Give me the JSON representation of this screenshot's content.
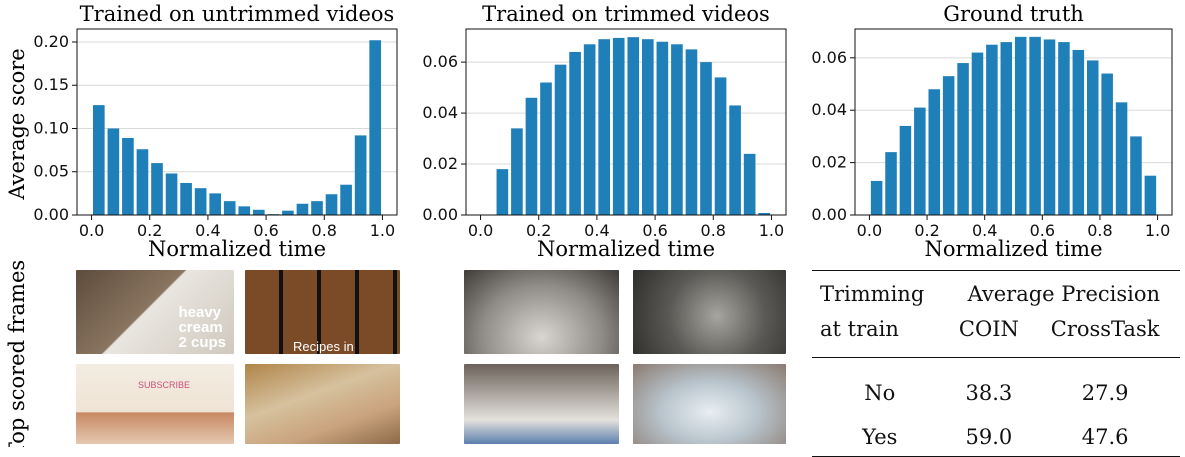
{
  "figure": {
    "ylabel": "Average score",
    "frames_label": "Top scored frames",
    "bar_color": "#1f7fb8"
  },
  "chart_data": [
    {
      "type": "bar",
      "title": "Trained on untrimmed videos",
      "xlabel": "Normalized time",
      "ylabel": "Average score",
      "x": [
        0.025,
        0.075,
        0.125,
        0.175,
        0.225,
        0.275,
        0.325,
        0.375,
        0.425,
        0.475,
        0.525,
        0.575,
        0.625,
        0.675,
        0.725,
        0.775,
        0.825,
        0.875,
        0.925,
        0.975
      ],
      "values": [
        0.127,
        0.1,
        0.089,
        0.076,
        0.06,
        0.048,
        0.037,
        0.031,
        0.025,
        0.016,
        0.01,
        0.006,
        0.001,
        0.005,
        0.013,
        0.016,
        0.024,
        0.035,
        0.092,
        0.202
      ],
      "xlim": [
        -0.05,
        1.05
      ],
      "ylim": [
        0,
        0.215
      ],
      "xticks": [
        "0.0",
        "0.2",
        "0.4",
        "0.6",
        "0.8",
        "1.0"
      ],
      "yticks": [
        "0.00",
        "0.05",
        "0.10",
        "0.15",
        "0.20"
      ],
      "grid": "horizontal"
    },
    {
      "type": "bar",
      "title": "Trained on trimmed videos",
      "xlabel": "Normalized time",
      "x": [
        0.025,
        0.075,
        0.125,
        0.175,
        0.225,
        0.275,
        0.325,
        0.375,
        0.425,
        0.475,
        0.525,
        0.575,
        0.625,
        0.675,
        0.725,
        0.775,
        0.825,
        0.875,
        0.925,
        0.975
      ],
      "values": [
        0.0002,
        0.018,
        0.034,
        0.046,
        0.052,
        0.059,
        0.064,
        0.067,
        0.069,
        0.0695,
        0.0698,
        0.069,
        0.068,
        0.067,
        0.065,
        0.06,
        0.054,
        0.043,
        0.024,
        0.0008
      ],
      "xlim": [
        -0.05,
        1.05
      ],
      "ylim": [
        0,
        0.073
      ],
      "xticks": [
        "0.0",
        "0.2",
        "0.4",
        "0.6",
        "0.8",
        "1.0"
      ],
      "yticks": [
        "0.00",
        "0.02",
        "0.04",
        "0.06"
      ],
      "grid": "horizontal"
    },
    {
      "type": "bar",
      "title": "Ground truth",
      "xlabel": "Normalized time",
      "x": [
        0.025,
        0.075,
        0.125,
        0.175,
        0.225,
        0.275,
        0.325,
        0.375,
        0.425,
        0.475,
        0.525,
        0.575,
        0.625,
        0.675,
        0.725,
        0.775,
        0.825,
        0.875,
        0.925,
        0.975
      ],
      "values": [
        0.013,
        0.024,
        0.034,
        0.041,
        0.048,
        0.053,
        0.058,
        0.062,
        0.065,
        0.066,
        0.068,
        0.068,
        0.067,
        0.066,
        0.063,
        0.059,
        0.054,
        0.043,
        0.03,
        0.015
      ],
      "xlim": [
        -0.05,
        1.05
      ],
      "ylim": [
        0,
        0.071
      ],
      "xticks": [
        "0.0",
        "0.2",
        "0.4",
        "0.6",
        "0.8",
        "1.0"
      ],
      "yticks": [
        "0.00",
        "0.02",
        "0.04",
        "0.06"
      ],
      "grid": "horizontal"
    },
    {
      "type": "table",
      "header": {
        "col1": [
          "Trimming",
          "at train"
        ],
        "group": "Average Precision",
        "cols": [
          "COIN",
          "CrossTask"
        ]
      },
      "rows": [
        {
          "trimming": "No",
          "coin": "38.3",
          "crosstask": "27.9"
        },
        {
          "trimming": "Yes",
          "coin": "59.0",
          "crosstask": "47.6"
        }
      ]
    }
  ],
  "frames": [
    {
      "name": "frame-cream-pouring",
      "text": "heavy\ncream\n2 cups",
      "colors": [
        "#6b5a48",
        "#e8e4de"
      ]
    },
    {
      "name": "frame-recipe-grid",
      "text": "Recipes in",
      "colors": [
        "#1d1b18",
        "#7a4a2a"
      ]
    },
    {
      "name": "frame-recipe-site",
      "text": "SUBSCRIBE",
      "colors": [
        "#f1e9df",
        "#c98b6a"
      ]
    },
    {
      "name": "frame-soap-book",
      "text": "",
      "colors": [
        "#b78a55",
        "#d9c7a8"
      ]
    },
    {
      "name": "frame-pan-spatula",
      "text": "",
      "colors": [
        "#8a8783",
        "#c0844e"
      ]
    },
    {
      "name": "frame-bicycle-wheel",
      "text": "",
      "colors": [
        "#4c4a47",
        "#9a9893"
      ]
    },
    {
      "name": "frame-pot-stirring",
      "text": "",
      "colors": [
        "#7a7068",
        "#d6d2cc"
      ]
    },
    {
      "name": "frame-egg-bowl",
      "text": "",
      "colors": [
        "#9a8e86",
        "#cfd8df"
      ]
    }
  ]
}
